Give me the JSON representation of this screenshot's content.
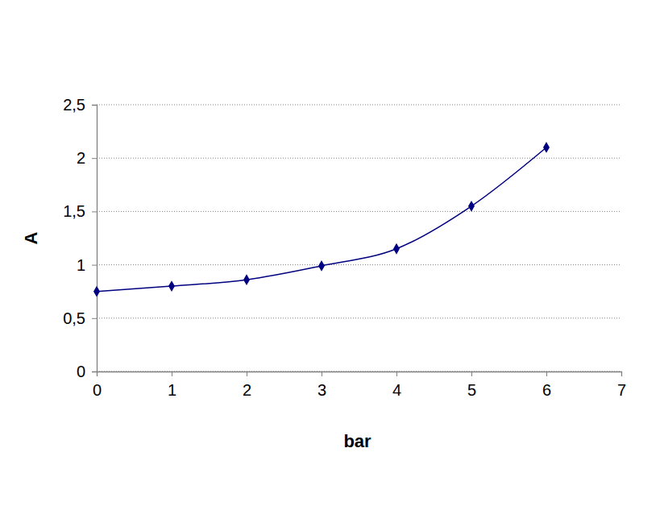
{
  "chart_data": {
    "type": "line",
    "xlabel": "bar",
    "ylabel": "A",
    "x": [
      0,
      1,
      2,
      3,
      4,
      5,
      6
    ],
    "values": [
      0.75,
      0.8,
      0.86,
      0.99,
      1.15,
      1.55,
      2.1
    ],
    "color": "#000080",
    "marker": "diamond",
    "line_style": "solid",
    "xlim": [
      0,
      7
    ],
    "xticks": [
      0,
      1,
      2,
      3,
      4,
      5,
      6,
      7
    ],
    "ylim": [
      0,
      2.5
    ],
    "yticks": [
      0,
      {
        "value": 0.5,
        "label": "0,5"
      },
      1,
      {
        "value": 1.5,
        "label": "1,5"
      },
      2,
      {
        "value": 2.5,
        "label": "2,5"
      }
    ],
    "grid": true
  }
}
